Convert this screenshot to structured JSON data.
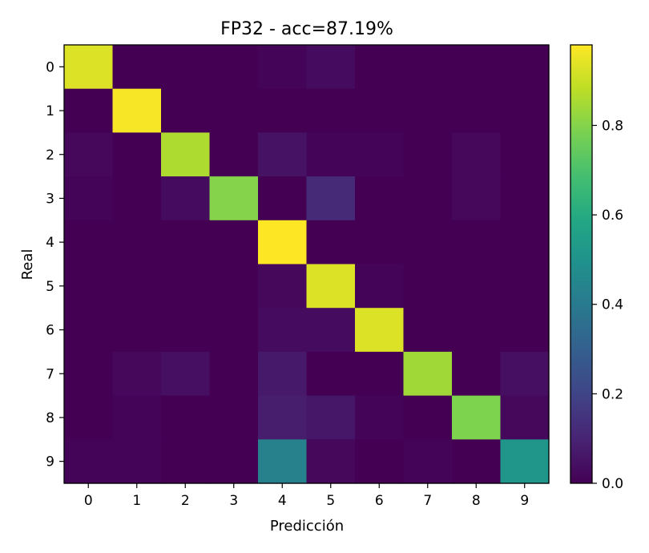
{
  "chart_data": {
    "type": "heatmap",
    "title": "FP32 - acc=87.19%",
    "xlabel": "Predicción",
    "ylabel": "Real",
    "x_categories": [
      "0",
      "1",
      "2",
      "3",
      "4",
      "5",
      "6",
      "7",
      "8",
      "9"
    ],
    "y_categories": [
      "0",
      "1",
      "2",
      "3",
      "4",
      "5",
      "6",
      "7",
      "8",
      "9"
    ],
    "values": [
      [
        0.93,
        0.0,
        0.0,
        0.0,
        0.01,
        0.03,
        0.0,
        0.0,
        0.0,
        0.0
      ],
      [
        0.0,
        0.97,
        0.0,
        0.0,
        0.0,
        0.0,
        0.0,
        0.0,
        0.0,
        0.0
      ],
      [
        0.02,
        0.0,
        0.86,
        0.0,
        0.05,
        0.01,
        0.01,
        0.0,
        0.02,
        0.0
      ],
      [
        0.01,
        0.0,
        0.03,
        0.8,
        0.0,
        0.12,
        0.0,
        0.0,
        0.02,
        0.0
      ],
      [
        0.0,
        0.0,
        0.0,
        0.0,
        0.98,
        0.0,
        0.0,
        0.0,
        0.0,
        0.0
      ],
      [
        0.0,
        0.0,
        0.0,
        0.0,
        0.02,
        0.93,
        0.01,
        0.0,
        0.0,
        0.0
      ],
      [
        0.0,
        0.0,
        0.0,
        0.0,
        0.03,
        0.03,
        0.93,
        0.0,
        0.0,
        0.0
      ],
      [
        0.0,
        0.02,
        0.04,
        0.0,
        0.07,
        0.0,
        0.0,
        0.84,
        0.0,
        0.04
      ],
      [
        0.0,
        0.01,
        0.0,
        0.0,
        0.08,
        0.06,
        0.01,
        0.0,
        0.79,
        0.02
      ],
      [
        0.01,
        0.01,
        0.0,
        0.0,
        0.43,
        0.02,
        0.0,
        0.01,
        0.0,
        0.51
      ]
    ],
    "colormap": "viridis",
    "colorbar": {
      "range": [
        0.0,
        0.98
      ],
      "ticks": [
        "0.0",
        "0.2",
        "0.4",
        "0.6",
        "0.8"
      ],
      "tick_values": [
        0.0,
        0.2,
        0.4,
        0.6,
        0.8
      ]
    },
    "grid": false
  }
}
